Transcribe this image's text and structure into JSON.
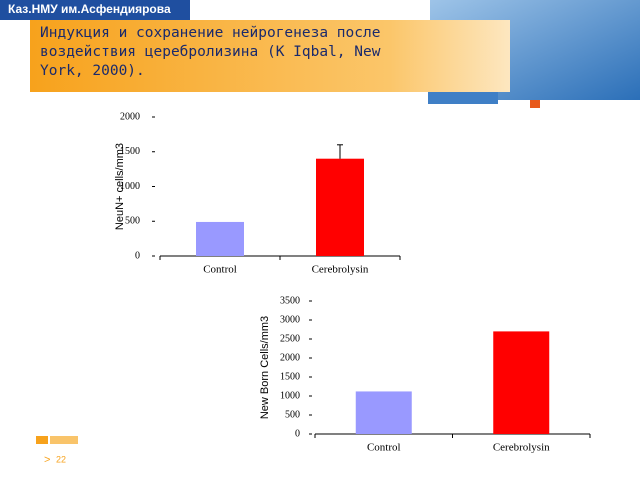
{
  "header": {
    "org": "Каз.НМУ им.Асфендиярова",
    "title": "Индукция и сохранение нейрогенеза после воздействия церебролизина (K Iqbal, New York,  2000)."
  },
  "page_number": "22",
  "chart_data": [
    {
      "type": "bar",
      "y_label": "NeuN+ cells/mm3",
      "categories": [
        "Control",
        "Cerebrolysin"
      ],
      "values": [
        490,
        1400
      ],
      "errors": [
        null,
        200
      ],
      "colors": [
        "#9999ff",
        "#ff0000"
      ],
      "ylim": [
        0,
        2000
      ],
      "yticks": [
        0,
        500,
        1000,
        1500,
        2000
      ]
    },
    {
      "type": "bar",
      "y_label": "New Born Cells/mm3",
      "categories": [
        "Control",
        "Cerebrolysin"
      ],
      "values": [
        1120,
        2700
      ],
      "colors": [
        "#9999ff",
        "#ff0000"
      ],
      "ylim": [
        0,
        3500
      ],
      "yticks": [
        0,
        500,
        1000,
        1500,
        2000,
        2500,
        3000,
        3500
      ]
    }
  ]
}
